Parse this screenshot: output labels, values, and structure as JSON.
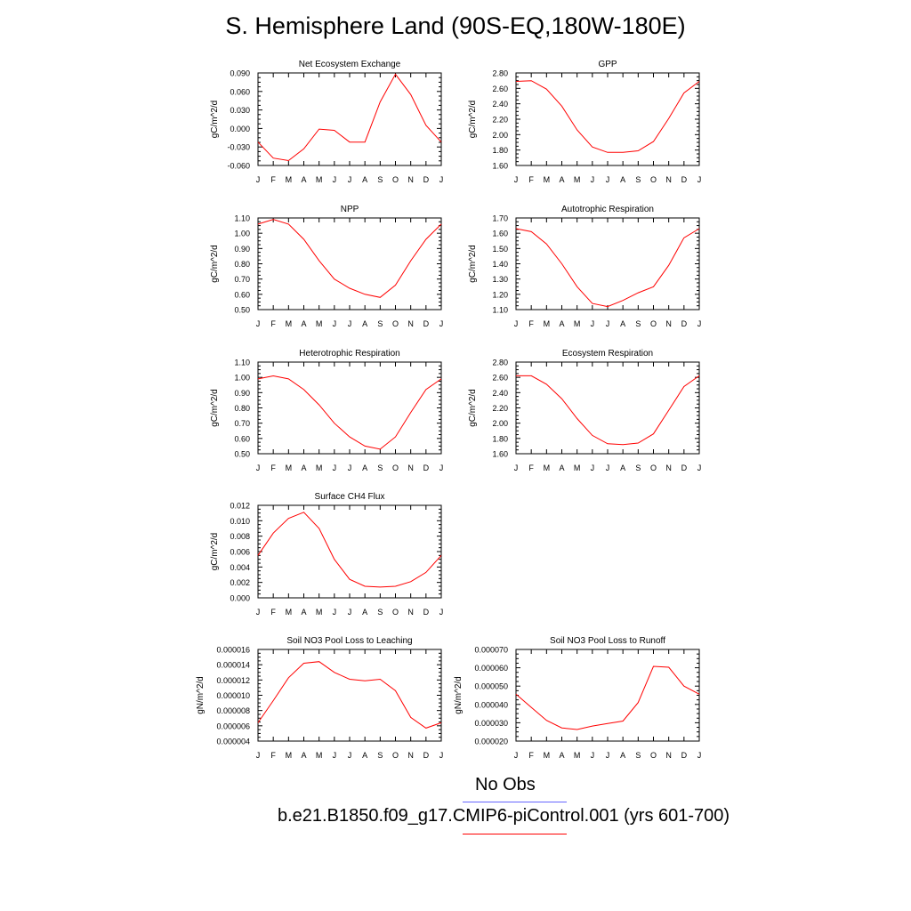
{
  "title": "S. Hemisphere Land (90S-EQ,180W-180E)",
  "months": [
    "J",
    "F",
    "M",
    "A",
    "M",
    "J",
    "J",
    "A",
    "S",
    "O",
    "N",
    "D",
    "J"
  ],
  "colors": {
    "model": "#ff0000",
    "obs": "#6666ff",
    "frame": "#000000"
  },
  "legend": {
    "obs_label": "No Obs",
    "model_label": "b.e21.B1850.f09_g17.CMIP6-piControl.001 (yrs 601-700)"
  },
  "chart_data": [
    {
      "type": "line",
      "title": "Net Ecosystem Exchange",
      "ylabel": "gC/m^2/d",
      "ylim": [
        -0.06,
        0.09
      ],
      "yticks": [
        "0.090",
        "0.060",
        "0.030",
        "0.000",
        "-0.030",
        "-0.060"
      ],
      "x": [
        "J",
        "F",
        "M",
        "A",
        "M",
        "J",
        "J",
        "A",
        "S",
        "O",
        "N",
        "D",
        "J"
      ],
      "values": [
        -0.022,
        -0.048,
        -0.052,
        -0.033,
        -0.001,
        -0.003,
        -0.022,
        -0.022,
        0.043,
        0.088,
        0.055,
        0.005,
        -0.022
      ]
    },
    {
      "type": "line",
      "title": "GPP",
      "ylabel": "gC/m^2/d",
      "ylim": [
        1.6,
        2.8
      ],
      "yticks": [
        "2.80",
        "2.60",
        "2.40",
        "2.20",
        "2.00",
        "1.80",
        "1.60"
      ],
      "x": [
        "J",
        "F",
        "M",
        "A",
        "M",
        "J",
        "J",
        "A",
        "S",
        "O",
        "N",
        "D",
        "J"
      ],
      "values": [
        2.69,
        2.7,
        2.59,
        2.37,
        2.06,
        1.84,
        1.77,
        1.77,
        1.79,
        1.91,
        2.21,
        2.54,
        2.69
      ]
    },
    {
      "type": "line",
      "title": "NPP",
      "ylabel": "gC/m^2/d",
      "ylim": [
        0.5,
        1.1
      ],
      "yticks": [
        "1.10",
        "1.00",
        "0.90",
        "0.80",
        "0.70",
        "0.60",
        "0.50"
      ],
      "x": [
        "J",
        "F",
        "M",
        "A",
        "M",
        "J",
        "J",
        "A",
        "S",
        "O",
        "N",
        "D",
        "J"
      ],
      "values": [
        1.06,
        1.09,
        1.06,
        0.96,
        0.82,
        0.7,
        0.64,
        0.6,
        0.58,
        0.66,
        0.82,
        0.96,
        1.06
      ]
    },
    {
      "type": "line",
      "title": "Autotrophic Respiration",
      "ylabel": "gC/m^2/d",
      "ylim": [
        1.1,
        1.7
      ],
      "yticks": [
        "1.70",
        "1.60",
        "1.50",
        "1.40",
        "1.30",
        "1.20",
        "1.10"
      ],
      "x": [
        "J",
        "F",
        "M",
        "A",
        "M",
        "J",
        "J",
        "A",
        "S",
        "O",
        "N",
        "D",
        "J"
      ],
      "values": [
        1.63,
        1.61,
        1.53,
        1.4,
        1.25,
        1.14,
        1.12,
        1.16,
        1.21,
        1.25,
        1.39,
        1.57,
        1.63
      ]
    },
    {
      "type": "line",
      "title": "Heterotrophic Respiration",
      "ylabel": "gC/m^2/d",
      "ylim": [
        0.5,
        1.1
      ],
      "yticks": [
        "1.10",
        "1.00",
        "0.90",
        "0.80",
        "0.70",
        "0.60",
        "0.50"
      ],
      "x": [
        "J",
        "F",
        "M",
        "A",
        "M",
        "J",
        "J",
        "A",
        "S",
        "O",
        "N",
        "D",
        "J"
      ],
      "values": [
        0.99,
        1.01,
        0.99,
        0.92,
        0.82,
        0.7,
        0.61,
        0.55,
        0.53,
        0.61,
        0.77,
        0.92,
        0.99
      ]
    },
    {
      "type": "line",
      "title": "Ecosystem Respiration",
      "ylabel": "gC/m^2/d",
      "ylim": [
        1.6,
        2.8
      ],
      "yticks": [
        "2.80",
        "2.60",
        "2.40",
        "2.20",
        "2.00",
        "1.80",
        "1.60"
      ],
      "x": [
        "J",
        "F",
        "M",
        "A",
        "M",
        "J",
        "J",
        "A",
        "S",
        "O",
        "N",
        "D",
        "J"
      ],
      "values": [
        2.62,
        2.62,
        2.51,
        2.32,
        2.06,
        1.84,
        1.73,
        1.72,
        1.74,
        1.86,
        2.17,
        2.48,
        2.62
      ]
    },
    {
      "type": "line",
      "title": "Surface CH4 Flux",
      "ylabel": "gC/m^2/d",
      "ylim": [
        0.0,
        0.012
      ],
      "yticks": [
        "0.012",
        "0.010",
        "0.008",
        "0.006",
        "0.004",
        "0.002",
        "0.000"
      ],
      "x": [
        "J",
        "F",
        "M",
        "A",
        "M",
        "J",
        "J",
        "A",
        "S",
        "O",
        "N",
        "D",
        "J"
      ],
      "values": [
        0.0055,
        0.0084,
        0.0103,
        0.0111,
        0.009,
        0.005,
        0.0024,
        0.0015,
        0.0014,
        0.0015,
        0.0021,
        0.0033,
        0.0055
      ]
    },
    {
      "type": "line",
      "title": "Soil NO3 Pool Loss to Leaching",
      "ylabel": "gN/m^2/d",
      "ylim": [
        4e-06,
        1.6e-05
      ],
      "yticks": [
        "0.000016",
        "0.000014",
        "0.000012",
        "0.000010",
        "0.000008",
        "0.000006",
        "0.000004"
      ],
      "x": [
        "J",
        "F",
        "M",
        "A",
        "M",
        "J",
        "J",
        "A",
        "S",
        "O",
        "N",
        "D",
        "J"
      ],
      "values": [
        6.4e-06,
        9.3e-06,
        1.23e-05,
        1.42e-05,
        1.44e-05,
        1.3e-05,
        1.21e-05,
        1.19e-05,
        1.21e-05,
        1.06e-05,
        7.1e-06,
        5.7e-06,
        6.4e-06
      ]
    },
    {
      "type": "line",
      "title": "Soil NO3 Pool Loss to Runoff",
      "ylabel": "gN/m^2/d",
      "ylim": [
        2e-05,
        7e-05
      ],
      "yticks": [
        "0.000070",
        "0.000060",
        "0.000050",
        "0.000040",
        "0.000030",
        "0.000020"
      ],
      "x": [
        "J",
        "F",
        "M",
        "A",
        "M",
        "J",
        "J",
        "A",
        "S",
        "O",
        "N",
        "D",
        "J"
      ],
      "values": [
        4.56e-05,
        3.84e-05,
        3.13e-05,
        2.72e-05,
        2.63e-05,
        2.82e-05,
        2.96e-05,
        3.09e-05,
        4.1e-05,
        6.08e-05,
        6.03e-05,
        5e-05,
        4.56e-05
      ]
    }
  ]
}
